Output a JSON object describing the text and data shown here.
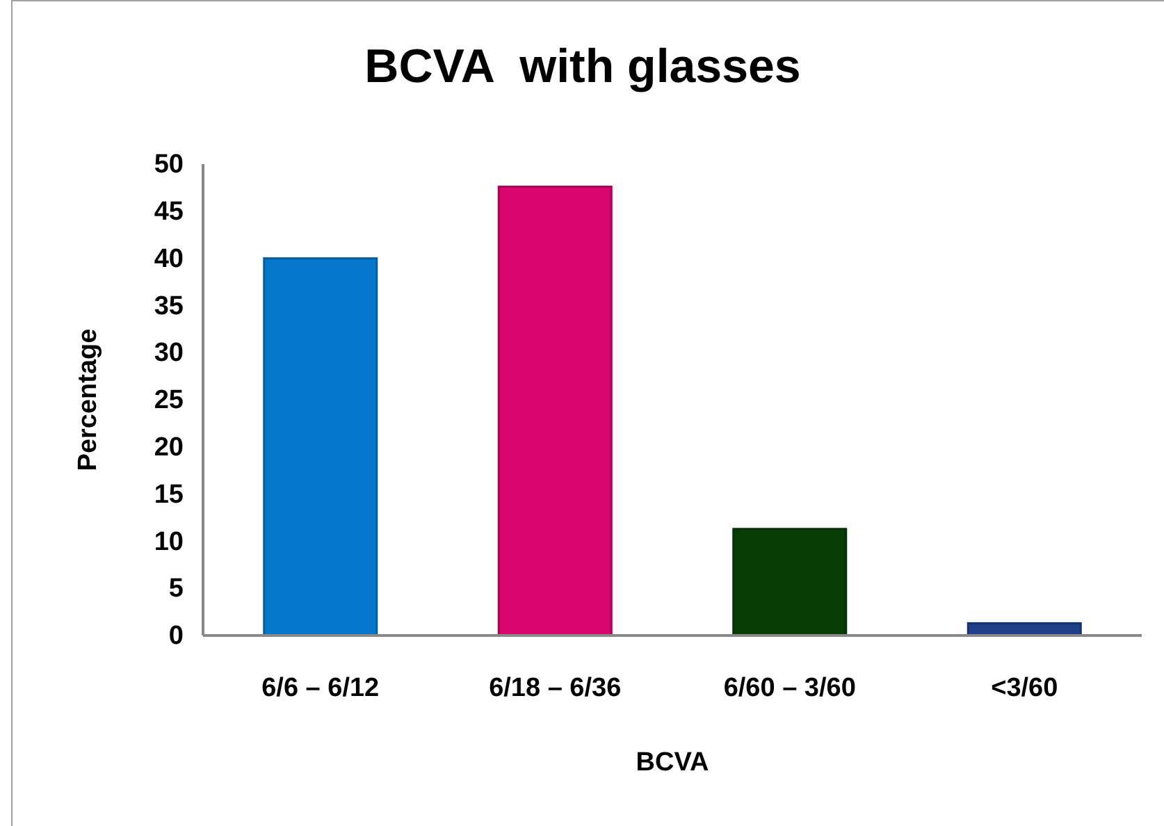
{
  "chart_data": {
    "type": "bar",
    "title": "BCVA  with glasses",
    "xlabel": "BCVA",
    "ylabel": "Percentage",
    "categories": [
      "6/6 – 6/12",
      "6/18 – 6/36",
      "6/60 – 3/60",
      "<3/60"
    ],
    "values": [
      40,
      47.6,
      11.3,
      1.3
    ],
    "colors": [
      "#0777cc",
      "#d9056e",
      "#073d07",
      "#1f3f8a"
    ],
    "ylim": [
      0,
      50
    ],
    "yticks": [
      0,
      5,
      10,
      15,
      20,
      25,
      30,
      35,
      40,
      45,
      50
    ],
    "grid": false
  }
}
